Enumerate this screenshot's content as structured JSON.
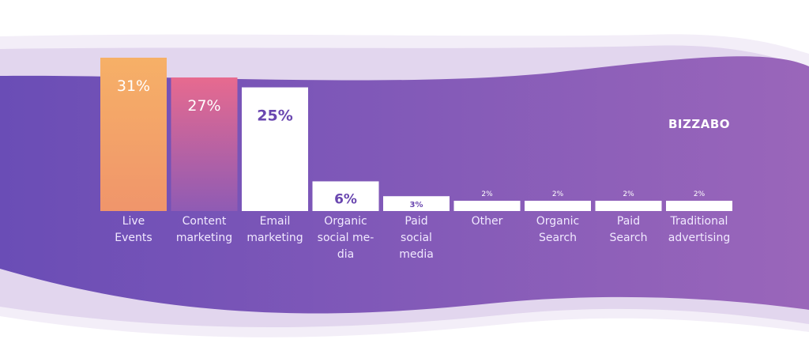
{
  "brand": {
    "name": "BIZZABO"
  },
  "colors": {
    "band_dark": "#6a4db6",
    "band_light": "#9a66ba",
    "bar_white": "#ffffff",
    "label_purple": "#6a47b0",
    "bar_live_top": "#f6b067",
    "bar_live_bottom": "#f0956b",
    "bar_content_top": "#e76a8f",
    "bar_content_bottom": "#8f5bb4"
  },
  "chart_data": {
    "type": "bar",
    "categories": [
      [
        "Live",
        "Events"
      ],
      [
        "Content",
        "marketing"
      ],
      [
        "Email",
        "marketing"
      ],
      [
        "Organic",
        "social me-",
        "dia"
      ],
      [
        "Paid",
        "social",
        "media"
      ],
      [
        "Other"
      ],
      [
        "Organic",
        "Search"
      ],
      [
        "Paid",
        "Search"
      ],
      [
        "Traditional",
        "advertising"
      ]
    ],
    "values": [
      31,
      27,
      25,
      6,
      3,
      2,
      2,
      2,
      2
    ],
    "value_labels": [
      "31%",
      "27%",
      "25%",
      "6%",
      "3%",
      "2%",
      "2%",
      "2%",
      "2%"
    ],
    "unit": "%",
    "ylim": [
      0,
      31
    ],
    "title": "",
    "xlabel": "",
    "ylabel": "",
    "grid": false,
    "legend": "none"
  }
}
